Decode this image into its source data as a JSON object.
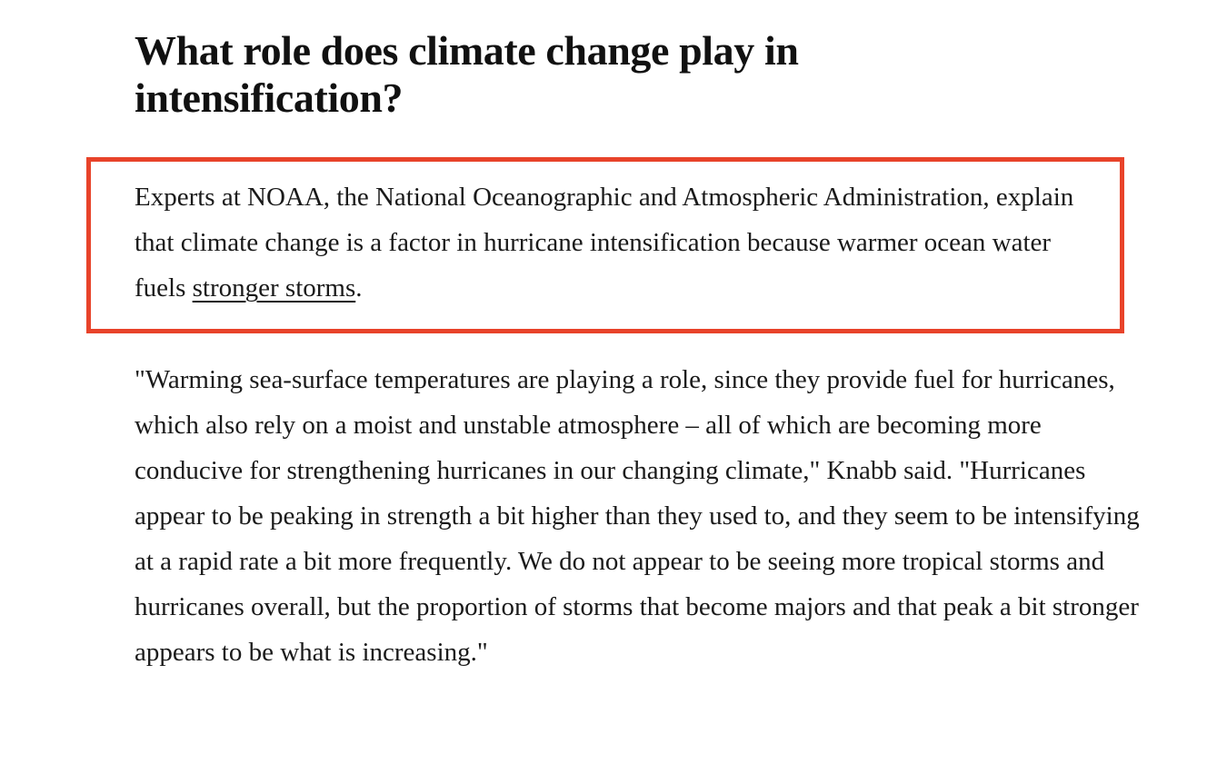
{
  "article": {
    "heading": "What role does climate change play in intensification?",
    "highlighted_paragraph": {
      "text_before_link": "Experts at NOAA, the National Oceanographic and Atmospheric Administration, explain that climate change is a factor in hurricane intensification because warmer ocean water fuels ",
      "link_text": "stronger storms",
      "text_after_link": "."
    },
    "quote_paragraph": "\"Warming sea-surface temperatures are playing a role, since they provide fuel for hurricanes, which also rely on a moist and unstable atmosphere – all of which are becoming more conducive for strengthening hurricanes in our changing climate,\" Knabb said. \"Hurricanes appear to be peaking in strength a bit higher than they used to, and they seem to be intensifying at a rapid rate a bit more frequently. We do not appear to be seeing more tropical storms and hurricanes overall, but the proportion of storms that become majors and that peak a bit stronger appears to be what is increasing.\""
  },
  "colors": {
    "highlight_border": "#e8432a",
    "text": "#1a1a1a",
    "background": "#ffffff"
  }
}
